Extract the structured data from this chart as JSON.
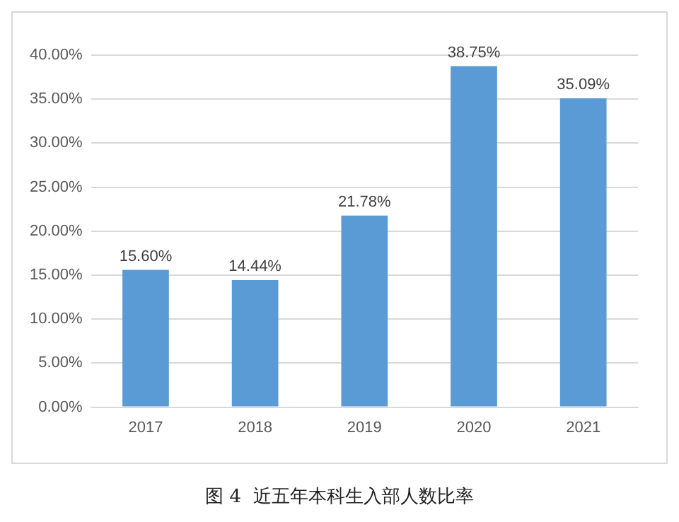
{
  "chart_data": {
    "type": "bar",
    "title": "图 4  近五年本科生入部人数比率",
    "categories": [
      "2017",
      "2018",
      "2019",
      "2020",
      "2021"
    ],
    "values": [
      15.6,
      14.44,
      21.78,
      38.75,
      35.09
    ],
    "value_labels": [
      "15.60%",
      "14.44%",
      "21.78%",
      "38.75%",
      "35.09%"
    ],
    "color": "#5b9bd5",
    "ylim": [
      0,
      40
    ],
    "yticks": [
      {
        "value": 0,
        "label": "0.00%"
      },
      {
        "value": 5,
        "label": "5.00%"
      },
      {
        "value": 10,
        "label": "10.00%"
      },
      {
        "value": 15,
        "label": "15.00%"
      },
      {
        "value": 20,
        "label": "20.00%"
      },
      {
        "value": 25,
        "label": "25.00%"
      },
      {
        "value": 30,
        "label": "30.00%"
      },
      {
        "value": 35,
        "label": "35.00%"
      },
      {
        "value": 40,
        "label": "40.00%"
      }
    ],
    "grid": "y"
  }
}
